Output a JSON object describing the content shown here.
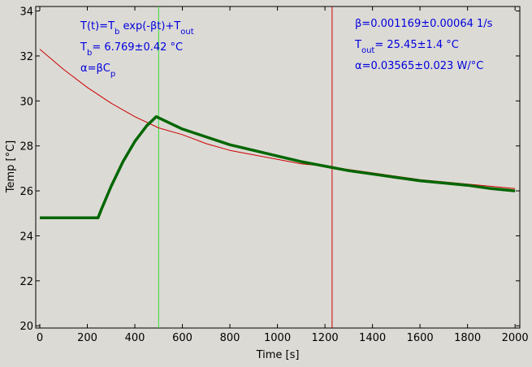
{
  "chart_data": {
    "type": "line",
    "title": "",
    "xlabel": "Time [s]",
    "ylabel": "Temp [°C]",
    "xlim": [
      0,
      2020
    ],
    "ylim": [
      19.9,
      34.2
    ],
    "x_ticks": [
      0,
      200,
      400,
      600,
      800,
      1000,
      1200,
      1400,
      1600,
      1800,
      2000
    ],
    "y_ticks": [
      20,
      22,
      24,
      26,
      28,
      30,
      32,
      34
    ],
    "grid": false,
    "colors": {
      "background": "#dcdad5",
      "fit": "#cc0000",
      "measured": "#006600",
      "marker_start": "#33dd33",
      "marker_end": "#cc0000",
      "annotation": "#0000dd"
    },
    "annotations_left": [
      [
        {
          "t": "T(t)=T"
        },
        {
          "t": "b",
          "sub": true
        },
        {
          "t": " exp(-βt)+T"
        },
        {
          "t": "out",
          "sub": true
        }
      ],
      [
        {
          "t": "T"
        },
        {
          "t": "b",
          "sub": true
        },
        {
          "t": "= 6.769±0.42 °C"
        }
      ],
      [
        {
          "t": "α=βC"
        },
        {
          "t": "p",
          "sub": true
        }
      ]
    ],
    "annotations_right": [
      [
        {
          "t": "β=0.001169±0.00064 1/s"
        }
      ],
      [
        {
          "t": "T"
        },
        {
          "t": "out",
          "sub": true
        },
        {
          "t": "= 25.45±1.4 °C"
        }
      ],
      [
        {
          "t": "α=0.03565±0.023 W/°C"
        }
      ]
    ],
    "vlines": [
      {
        "x": 500,
        "color": "#33dd33"
      },
      {
        "x": 1230,
        "color": "#cc0000"
      }
    ],
    "series": [
      {
        "type": "fit",
        "color": "#cc0000",
        "x": [
          0,
          100,
          200,
          300,
          400,
          500,
          600,
          700,
          800,
          900,
          1000,
          1100,
          1200,
          1300,
          1400,
          1500,
          1600,
          1700,
          1800,
          1900,
          2000
        ],
        "y": [
          32.3,
          31.4,
          30.6,
          29.9,
          29.3,
          28.8,
          28.5,
          28.1,
          27.8,
          27.6,
          27.4,
          27.2,
          27.1,
          26.95,
          26.8,
          26.65,
          26.5,
          26.4,
          26.3,
          26.2,
          26.1
        ]
      },
      {
        "type": "measured",
        "color": "#006600",
        "x": [
          0,
          100,
          200,
          245,
          260,
          300,
          350,
          400,
          450,
          490,
          500,
          600,
          700,
          800,
          900,
          1000,
          1100,
          1200,
          1300,
          1400,
          1500,
          1600,
          1700,
          1800,
          1900,
          2000
        ],
        "y": [
          24.8,
          24.8,
          24.8,
          24.8,
          25.2,
          26.2,
          27.3,
          28.2,
          28.9,
          29.3,
          29.25,
          28.75,
          28.4,
          28.05,
          27.8,
          27.55,
          27.3,
          27.1,
          26.9,
          26.75,
          26.6,
          26.45,
          26.35,
          26.25,
          26.1,
          26.0
        ]
      }
    ]
  }
}
